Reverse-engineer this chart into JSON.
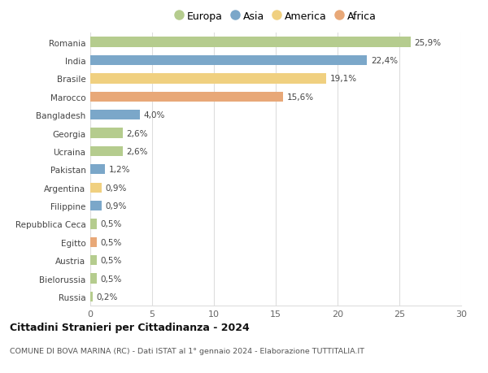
{
  "categories": [
    "Romania",
    "India",
    "Brasile",
    "Marocco",
    "Bangladesh",
    "Georgia",
    "Ucraina",
    "Pakistan",
    "Argentina",
    "Filippine",
    "Repubblica Ceca",
    "Egitto",
    "Austria",
    "Bielorussia",
    "Russia"
  ],
  "values": [
    25.9,
    22.4,
    19.1,
    15.6,
    4.0,
    2.6,
    2.6,
    1.2,
    0.9,
    0.9,
    0.5,
    0.5,
    0.5,
    0.5,
    0.2
  ],
  "labels": [
    "25,9%",
    "22,4%",
    "19,1%",
    "15,6%",
    "4,0%",
    "2,6%",
    "2,6%",
    "1,2%",
    "0,9%",
    "0,9%",
    "0,5%",
    "0,5%",
    "0,5%",
    "0,5%",
    "0,2%"
  ],
  "continents": [
    "Europa",
    "Asia",
    "America",
    "Africa",
    "Asia",
    "Europa",
    "Europa",
    "Asia",
    "America",
    "Asia",
    "Europa",
    "Africa",
    "Europa",
    "Europa",
    "Europa"
  ],
  "continent_colors": {
    "Europa": "#b5cc8e",
    "Asia": "#7ba7c9",
    "America": "#f0d080",
    "Africa": "#e8a878"
  },
  "legend_order": [
    "Europa",
    "Asia",
    "America",
    "Africa"
  ],
  "title": "Cittadini Stranieri per Cittadinanza - 2024",
  "subtitle": "COMUNE DI BOVA MARINA (RC) - Dati ISTAT al 1° gennaio 2024 - Elaborazione TUTTITALIA.IT",
  "xlim": [
    0,
    30
  ],
  "xticks": [
    0,
    5,
    10,
    15,
    20,
    25,
    30
  ],
  "background_color": "#ffffff",
  "grid_color": "#dddddd",
  "bar_height": 0.55
}
